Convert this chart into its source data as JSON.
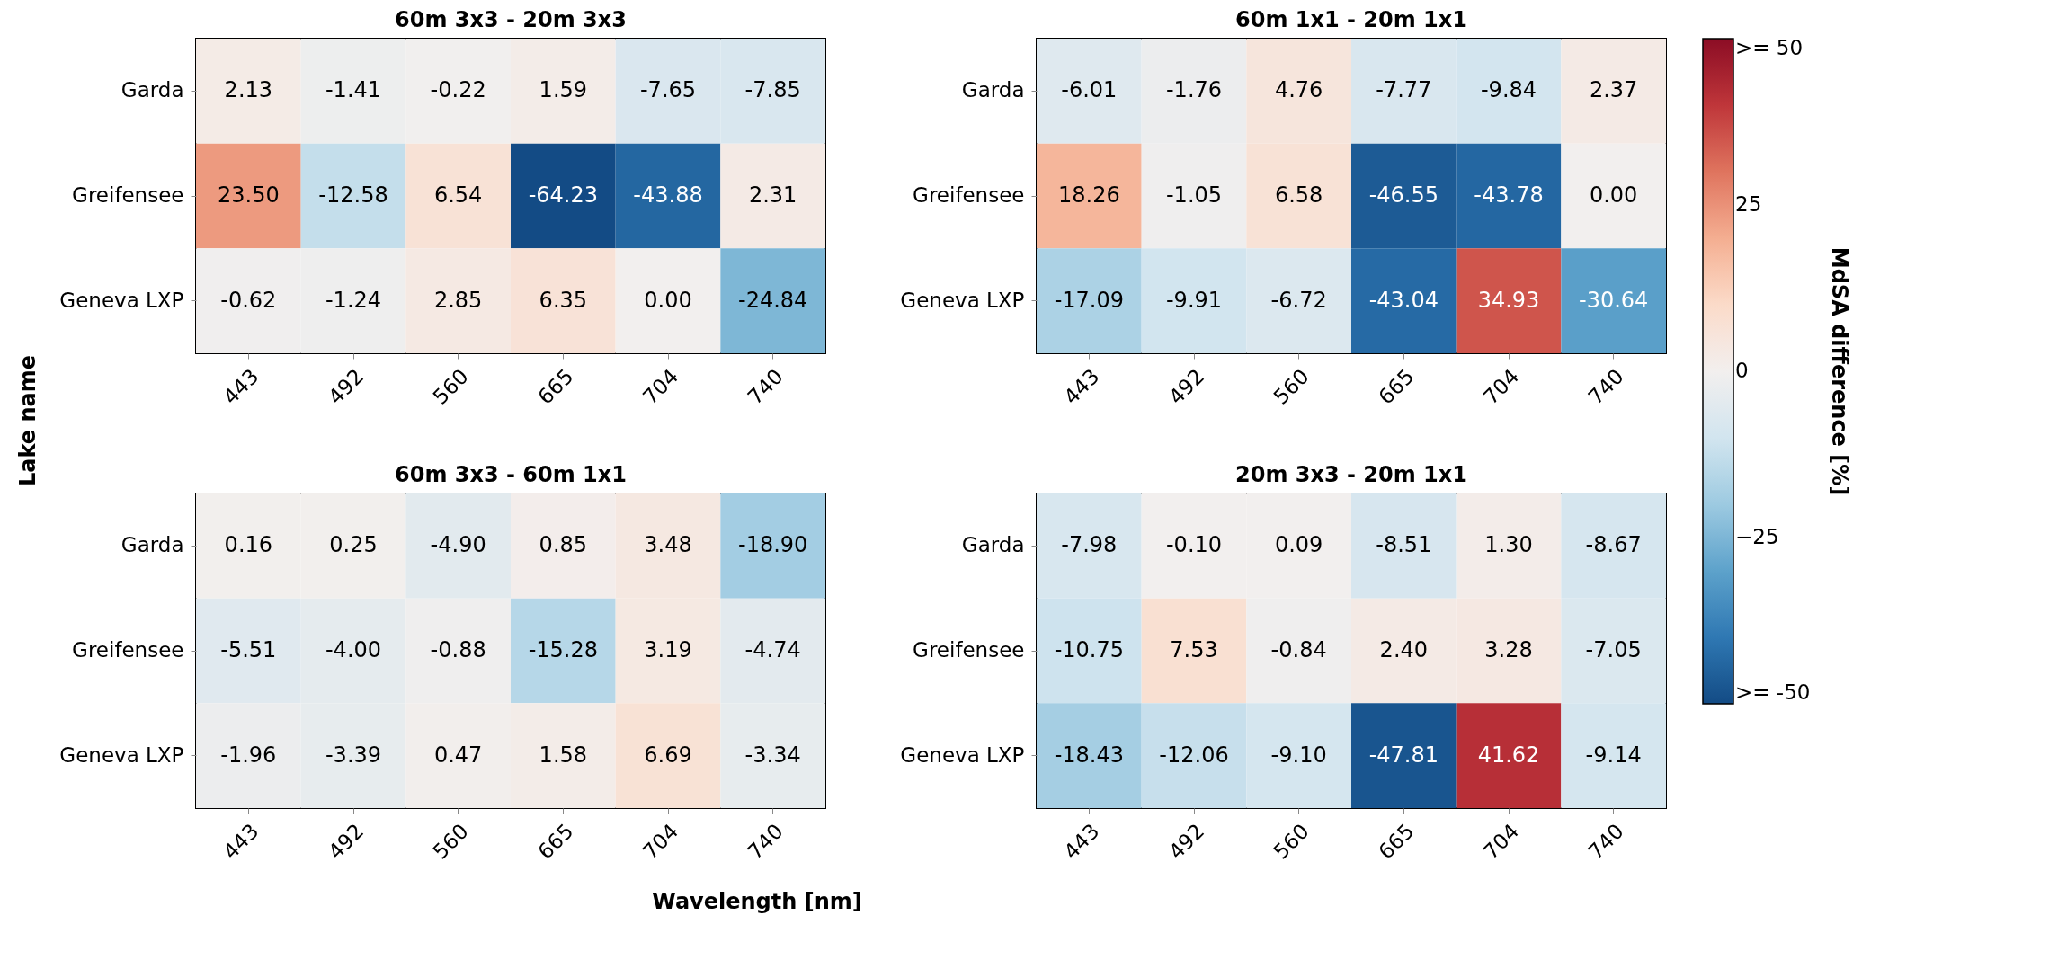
{
  "chart_data": [
    {
      "type": "heatmap",
      "title": "60m 3x3 - 20m 3x3",
      "ylabel": "Lake name",
      "categories": [
        "443",
        "492",
        "560",
        "665",
        "704",
        "740"
      ],
      "y_categories": [
        "Garda",
        "Greifensee",
        "Geneva LXP"
      ],
      "data_labels": true,
      "cells": [
        [
          2.13,
          -1.41,
          -0.22,
          1.59,
          -7.65,
          -7.85
        ],
        [
          23.5,
          -12.58,
          6.54,
          -64.23,
          -43.88,
          2.31
        ],
        [
          -0.62,
          -1.24,
          2.85,
          6.35,
          0.0,
          -24.84
        ]
      ],
      "cell_labels": [
        [
          "2.13",
          "-1.41",
          "-0.22",
          "1.59",
          "-7.65",
          "-7.85"
        ],
        [
          "23.50",
          "-12.58",
          "6.54",
          "-64.23",
          "-43.88",
          "2.31"
        ],
        [
          "-0.62",
          "-1.24",
          "2.85",
          "6.35",
          "0.00",
          "-24.84"
        ]
      ]
    },
    {
      "type": "heatmap",
      "title": "60m 1x1 - 20m 1x1",
      "clabel": "MdSA difference [%]",
      "categories": [
        "443",
        "492",
        "560",
        "665",
        "704",
        "740"
      ],
      "y_categories": [
        "Garda",
        "Greifensee",
        "Geneva LXP"
      ],
      "clim": [
        -50,
        50
      ],
      "data_labels": true,
      "cticks": [
        {
          "value": -50,
          "label": ">= -50"
        },
        -25,
        0,
        25,
        {
          "value": 50,
          "label": ">= 50"
        }
      ],
      "cells": [
        [
          -6.01,
          -1.76,
          4.76,
          -7.77,
          -9.84,
          2.37
        ],
        [
          18.26,
          -1.05,
          6.58,
          -46.55,
          -43.78,
          0.0
        ],
        [
          -17.09,
          -9.91,
          -6.72,
          -43.04,
          34.93,
          -30.64
        ]
      ],
      "cell_labels": [
        [
          "-6.01",
          "-1.76",
          "4.76",
          "-7.77",
          "-9.84",
          "2.37"
        ],
        [
          "18.26",
          "-1.05",
          "6.58",
          "-46.55",
          "-43.78",
          "0.00"
        ],
        [
          "-17.09",
          "-9.91",
          "-6.72",
          "-43.04",
          "34.93",
          "-30.64"
        ]
      ]
    },
    {
      "type": "heatmap",
      "title": "60m 3x3 - 60m 1x1",
      "xlabel": "Wavelength [nm]",
      "categories": [
        "443",
        "492",
        "560",
        "665",
        "704",
        "740"
      ],
      "y_categories": [
        "Garda",
        "Greifensee",
        "Geneva LXP"
      ],
      "data_labels": true,
      "cells": [
        [
          0.16,
          0.25,
          -4.9,
          0.85,
          3.48,
          -18.9
        ],
        [
          -5.51,
          -4.0,
          -0.88,
          -15.28,
          3.19,
          -4.74
        ],
        [
          -1.96,
          -3.39,
          0.47,
          1.58,
          6.69,
          -3.34
        ]
      ],
      "cell_labels": [
        [
          "0.16",
          "0.25",
          "-4.90",
          "0.85",
          "3.48",
          "-18.90"
        ],
        [
          "-5.51",
          "-4.00",
          "-0.88",
          "-15.28",
          "3.19",
          "-4.74"
        ],
        [
          "-1.96",
          "-3.39",
          "0.47",
          "1.58",
          "6.69",
          "-3.34"
        ]
      ]
    },
    {
      "type": "heatmap",
      "title": "20m 3x3 - 20m 1x1",
      "categories": [
        "443",
        "492",
        "560",
        "665",
        "704",
        "740"
      ],
      "y_categories": [
        "Garda",
        "Greifensee",
        "Geneva LXP"
      ],
      "data_labels": true,
      "cells": [
        [
          -7.98,
          -0.1,
          0.09,
          -8.51,
          1.3,
          -8.67
        ],
        [
          -10.75,
          7.53,
          -0.84,
          2.4,
          3.28,
          -7.05
        ],
        [
          -18.43,
          -12.06,
          -9.1,
          -47.81,
          41.62,
          -9.14
        ]
      ],
      "cell_labels": [
        [
          "-7.98",
          "-0.10",
          "0.09",
          "-8.51",
          "1.30",
          "-8.67"
        ],
        [
          "-10.75",
          "7.53",
          "-0.84",
          "2.40",
          "3.28",
          "-7.05"
        ],
        [
          "-18.43",
          "-12.06",
          "-9.10",
          "-47.81",
          "41.62",
          "-9.14"
        ]
      ]
    }
  ]
}
